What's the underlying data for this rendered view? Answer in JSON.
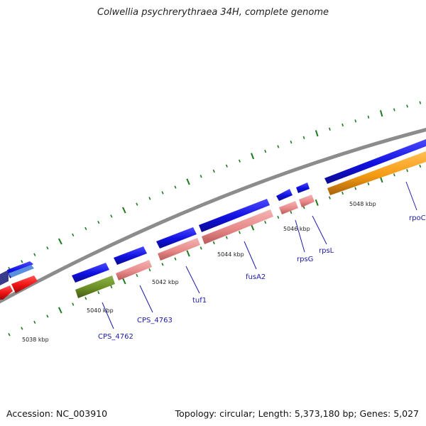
{
  "title": "Colwellia psychrerythraea 34H, complete genome",
  "footer": {
    "accession": "Accession: NC_003910",
    "summary": "Topology: circular; Length: 5,373,180 bp; Genes: 5,027"
  },
  "scale_labels": [
    "5038 kbp",
    "5040 kbp",
    "5042 kbp",
    "5044 kbp",
    "5046 kbp",
    "5048 kbp"
  ],
  "gene_labels": [
    "CPS_4762",
    "CPS_4763",
    "tuf1",
    "fusA2",
    "rpsG",
    "rpsL",
    "rpoC"
  ],
  "colors": {
    "cds": "#1010e0",
    "gene_pink": "#e88a8a",
    "gene_red": "#ee1111",
    "gene_olive": "#6b8e23",
    "gene_orange": "#f59a12",
    "backbone": "#8c8c8c",
    "tick": "#1e7a1e",
    "label": "#1a1aa8"
  }
}
